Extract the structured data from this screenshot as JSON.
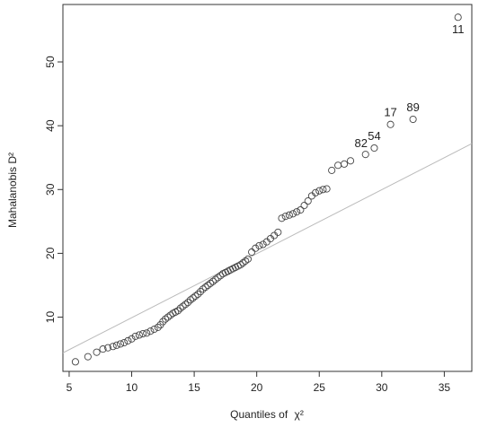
{
  "chart_data": {
    "type": "scatter",
    "title": "",
    "xlabel": "Quantiles of",
    "xlabel_symbol": "χ²",
    "ylabel": "Mahalanobis D²",
    "xlim": [
      4.5,
      37.2
    ],
    "ylim": [
      1.5,
      59
    ],
    "x_ticks": [
      5,
      10,
      15,
      20,
      25,
      30,
      35
    ],
    "y_ticks": [
      10,
      20,
      30,
      40,
      50
    ],
    "grid": false,
    "legend": "none",
    "colors": {
      "points": "#444444",
      "reference_line": "#bbbbbb",
      "axes": "#333333"
    },
    "reference_line": {
      "from": [
        4.5,
        4.4
      ],
      "to": [
        37.2,
        37.2
      ]
    },
    "points": [
      [
        5.5,
        3.0
      ],
      [
        6.5,
        3.8
      ],
      [
        7.2,
        4.5
      ],
      [
        7.7,
        5.0
      ],
      [
        8.1,
        5.2
      ],
      [
        8.5,
        5.4
      ],
      [
        8.8,
        5.6
      ],
      [
        9.1,
        5.8
      ],
      [
        9.4,
        6.0
      ],
      [
        9.7,
        6.3
      ],
      [
        10.0,
        6.6
      ],
      [
        10.3,
        7.0
      ],
      [
        10.6,
        7.2
      ],
      [
        10.9,
        7.4
      ],
      [
        11.2,
        7.5
      ],
      [
        11.5,
        7.8
      ],
      [
        11.8,
        8.1
      ],
      [
        12.1,
        8.4
      ],
      [
        12.3,
        8.8
      ],
      [
        12.5,
        9.3
      ],
      [
        12.7,
        9.7
      ],
      [
        12.9,
        10.0
      ],
      [
        13.1,
        10.3
      ],
      [
        13.3,
        10.6
      ],
      [
        13.5,
        10.8
      ],
      [
        13.7,
        11.0
      ],
      [
        13.9,
        11.4
      ],
      [
        14.1,
        11.7
      ],
      [
        14.3,
        12.0
      ],
      [
        14.5,
        12.3
      ],
      [
        14.7,
        12.7
      ],
      [
        14.9,
        13.0
      ],
      [
        15.1,
        13.3
      ],
      [
        15.3,
        13.6
      ],
      [
        15.5,
        14.0
      ],
      [
        15.7,
        14.4
      ],
      [
        15.9,
        14.7
      ],
      [
        16.1,
        15.0
      ],
      [
        16.3,
        15.3
      ],
      [
        16.5,
        15.6
      ],
      [
        16.7,
        15.9
      ],
      [
        16.9,
        16.2
      ],
      [
        17.1,
        16.5
      ],
      [
        17.3,
        16.8
      ],
      [
        17.5,
        17.0
      ],
      [
        17.7,
        17.2
      ],
      [
        17.9,
        17.4
      ],
      [
        18.1,
        17.6
      ],
      [
        18.3,
        17.8
      ],
      [
        18.5,
        18.0
      ],
      [
        18.7,
        18.2
      ],
      [
        18.9,
        18.5
      ],
      [
        19.1,
        18.8
      ],
      [
        19.3,
        19.1
      ],
      [
        19.6,
        20.2
      ],
      [
        19.9,
        20.8
      ],
      [
        20.2,
        21.2
      ],
      [
        20.5,
        21.4
      ],
      [
        20.8,
        21.8
      ],
      [
        21.1,
        22.3
      ],
      [
        21.4,
        22.8
      ],
      [
        21.7,
        23.3
      ],
      [
        22.0,
        25.5
      ],
      [
        22.3,
        25.8
      ],
      [
        22.6,
        26.0
      ],
      [
        22.9,
        26.2
      ],
      [
        23.2,
        26.5
      ],
      [
        23.5,
        26.8
      ],
      [
        23.8,
        27.5
      ],
      [
        24.1,
        28.2
      ],
      [
        24.4,
        29.0
      ],
      [
        24.7,
        29.5
      ],
      [
        25.0,
        29.8
      ],
      [
        25.3,
        30.0
      ],
      [
        25.6,
        30.1
      ],
      [
        26.0,
        33.0
      ],
      [
        26.5,
        33.8
      ],
      [
        27.0,
        34.0
      ],
      [
        27.5,
        34.5
      ],
      [
        28.7,
        35.5
      ],
      [
        29.4,
        36.5
      ],
      [
        30.7,
        40.2
      ],
      [
        32.5,
        41.0
      ],
      [
        36.1,
        57.0
      ]
    ],
    "labels": [
      {
        "x": 36.1,
        "y": 57.0,
        "text": "11",
        "position": "below"
      },
      {
        "x": 30.7,
        "y": 40.2,
        "text": "17",
        "position": "above"
      },
      {
        "x": 32.5,
        "y": 41.0,
        "text": "89",
        "position": "above"
      },
      {
        "x": 28.7,
        "y": 35.5,
        "text": "82",
        "position": "above-left"
      },
      {
        "x": 29.4,
        "y": 36.5,
        "text": "54",
        "position": "above"
      }
    ]
  }
}
